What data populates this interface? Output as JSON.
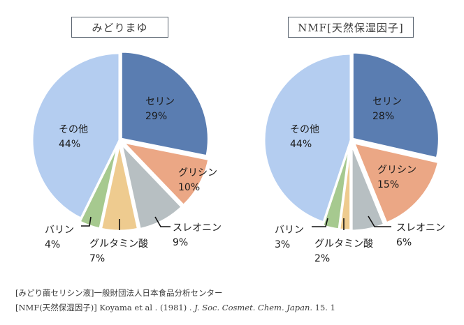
{
  "chart_data": [
    {
      "type": "pie",
      "title": "みどりまゆ",
      "start": "12 o'clock, clockwise",
      "slices": [
        {
          "label": "セリン",
          "value": 29,
          "display": "29%",
          "color": "#5a7db1",
          "label_placement": "inside"
        },
        {
          "label": "グリシン",
          "value": 10,
          "display": "10%",
          "color": "#eba785",
          "label_placement": "inside"
        },
        {
          "label": "スレオニン",
          "value": 9,
          "display": "9%",
          "color": "#b7bfc2",
          "label_placement": "outside"
        },
        {
          "label": "グルタミン酸",
          "value": 7,
          "display": "7%",
          "color": "#eecb8f",
          "label_placement": "outside"
        },
        {
          "label": "バリン",
          "value": 4,
          "display": "4%",
          "color": "#a6c98f",
          "label_placement": "outside"
        },
        {
          "label": "その他",
          "value": 44,
          "display": "44%",
          "color": "#b4cdf0",
          "label_placement": "inside"
        }
      ]
    },
    {
      "type": "pie",
      "title": "NMF[天然保湿因子]",
      "start": "12 o'clock, clockwise",
      "slices": [
        {
          "label": "セリン",
          "value": 28,
          "display": "28%",
          "color": "#5a7db1",
          "label_placement": "inside"
        },
        {
          "label": "グリシン",
          "value": 15,
          "display": "15%",
          "color": "#eba785",
          "label_placement": "inside"
        },
        {
          "label": "スレオニン",
          "value": 6,
          "display": "6%",
          "color": "#b7bfc2",
          "label_placement": "outside"
        },
        {
          "label": "グルタミン酸",
          "value": 2,
          "display": "2%",
          "color": "#eecb8f",
          "label_placement": "outside"
        },
        {
          "label": "バリン",
          "value": 3,
          "display": "3%",
          "color": "#a6c98f",
          "label_placement": "outside"
        },
        {
          "label": "その他",
          "value": 44,
          "display": "44%",
          "color": "#b4cdf0",
          "label_placement": "inside"
        }
      ]
    }
  ],
  "sources": {
    "line1": "[みどり繭セリシン液]一般財団法人日本食品分析センター",
    "line2_prefix": "[NMF(天然保湿因子)] Koyama et al . (1981) . ",
    "line2_journal": "J. Soc. Cosmet. Chem. Japan",
    "line2_suffix": ". 15. 1"
  }
}
